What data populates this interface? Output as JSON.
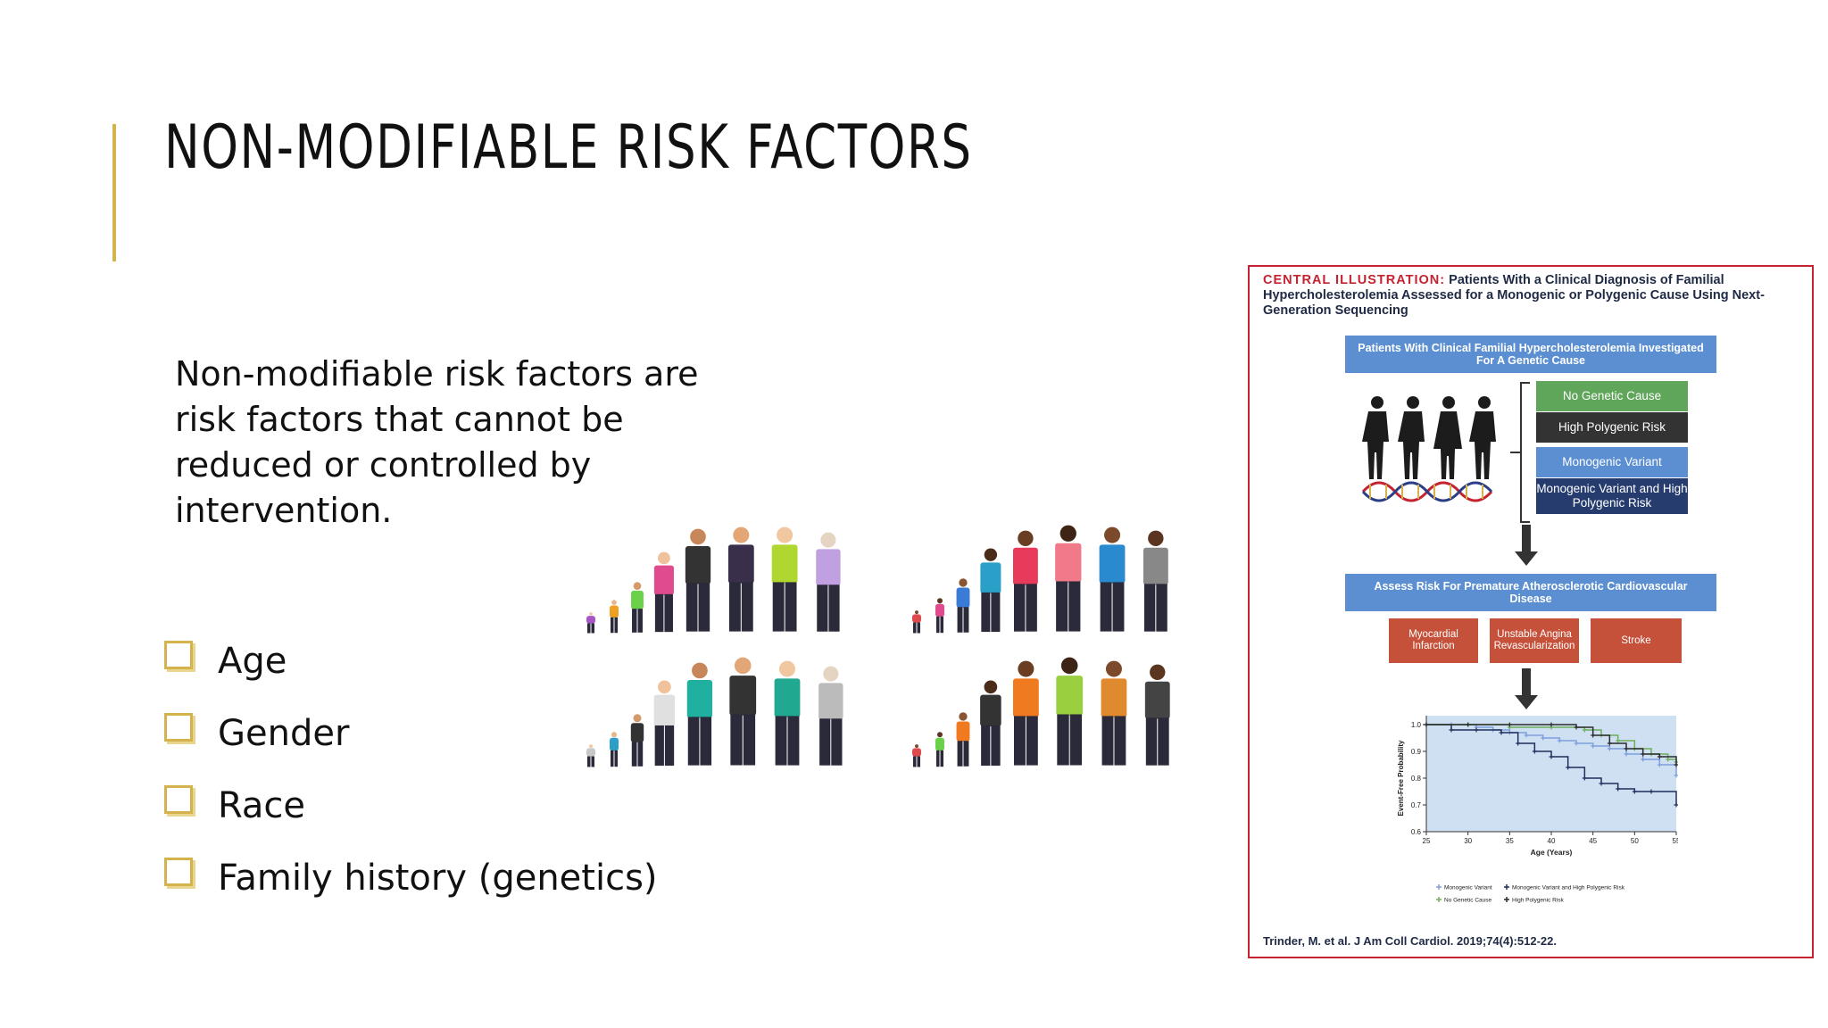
{
  "slide": {
    "title": "NON-MODIFIABLE RISK FACTORS",
    "intro": "Non-modifiable risk factors are risk factors that cannot be reduced or controlled by intervention.",
    "bullets": [
      "Age",
      "Gender",
      "Race",
      "Family history (genetics)"
    ]
  },
  "colors": {
    "accent": "#d4b24c",
    "figure_border": "#c4232f",
    "header_blue": "#5b8fd1",
    "outcome_red": "#c6513a"
  },
  "figure": {
    "caption_label": "CENTRAL ILLUSTRATION:",
    "caption_text": "Patients With a Clinical Diagnosis of Familial Hypercholesterolemia Assessed for a Monogenic or Polygenic Cause Using Next-Generation Sequencing",
    "top_box": "Patients With Clinical Familial Hypercholesterolemia Investigated For A Genetic Cause",
    "categories": [
      {
        "label": "No Genetic Cause",
        "color": "#5fa55a"
      },
      {
        "label": "High Polygenic Risk",
        "color": "#333333"
      },
      {
        "label": "Monogenic Variant",
        "color": "#5b8fd1"
      },
      {
        "label": "Monogenic Variant and High Polygenic Risk",
        "color": "#263c6e"
      }
    ],
    "assess_box": "Assess Risk For Premature Atherosclerotic Cardiovascular Disease",
    "outcomes": [
      "Myocardial Infarction",
      "Unstable Angina Revascularization",
      "Stroke"
    ],
    "reference": "Trinder, M. et al. J Am Coll Cardiol. 2019;74(4):512-22."
  },
  "chart_data": {
    "type": "line",
    "title": "",
    "xlabel": "Age (Years)",
    "ylabel": "Event-Free Probability",
    "xlim": [
      25,
      55
    ],
    "ylim": [
      0.6,
      1.0
    ],
    "x_ticks": [
      "25",
      "30",
      "35",
      "40",
      "45",
      "50",
      "55"
    ],
    "y_ticks": [
      "0.6",
      "0.7",
      "0.8",
      "0.9",
      "1.0"
    ],
    "legend_position": "bottom",
    "series": [
      {
        "name": "Monogenic Variant",
        "color": "#7f9fdc",
        "x": [
          25,
          28,
          31,
          33,
          35,
          37,
          39,
          41,
          43,
          45,
          47,
          49,
          51,
          53,
          55
        ],
        "y": [
          1.0,
          1.0,
          0.99,
          0.98,
          0.97,
          0.96,
          0.95,
          0.94,
          0.93,
          0.92,
          0.91,
          0.89,
          0.87,
          0.85,
          0.81
        ]
      },
      {
        "name": "Monogenic Variant and High Polygenic Risk",
        "color": "#1f2f5c",
        "x": [
          25,
          28,
          31,
          34,
          36,
          38,
          40,
          42,
          44,
          46,
          48,
          50,
          52,
          55
        ],
        "y": [
          1.0,
          0.98,
          0.98,
          0.97,
          0.93,
          0.9,
          0.88,
          0.84,
          0.8,
          0.78,
          0.76,
          0.75,
          0.75,
          0.7
        ]
      },
      {
        "name": "No Genetic Cause",
        "color": "#6fae5e",
        "x": [
          25,
          30,
          35,
          40,
          44,
          46,
          48,
          50,
          52,
          54,
          55
        ],
        "y": [
          1.0,
          1.0,
          0.99,
          0.99,
          0.98,
          0.96,
          0.94,
          0.91,
          0.89,
          0.87,
          0.86
        ]
      },
      {
        "name": "High Polygenic Risk",
        "color": "#2b2b2b",
        "x": [
          25,
          30,
          35,
          40,
          43,
          45,
          47,
          49,
          51,
          53,
          55
        ],
        "y": [
          1.0,
          1.0,
          1.0,
          1.0,
          0.99,
          0.96,
          0.93,
          0.91,
          0.89,
          0.88,
          0.85
        ]
      }
    ]
  }
}
